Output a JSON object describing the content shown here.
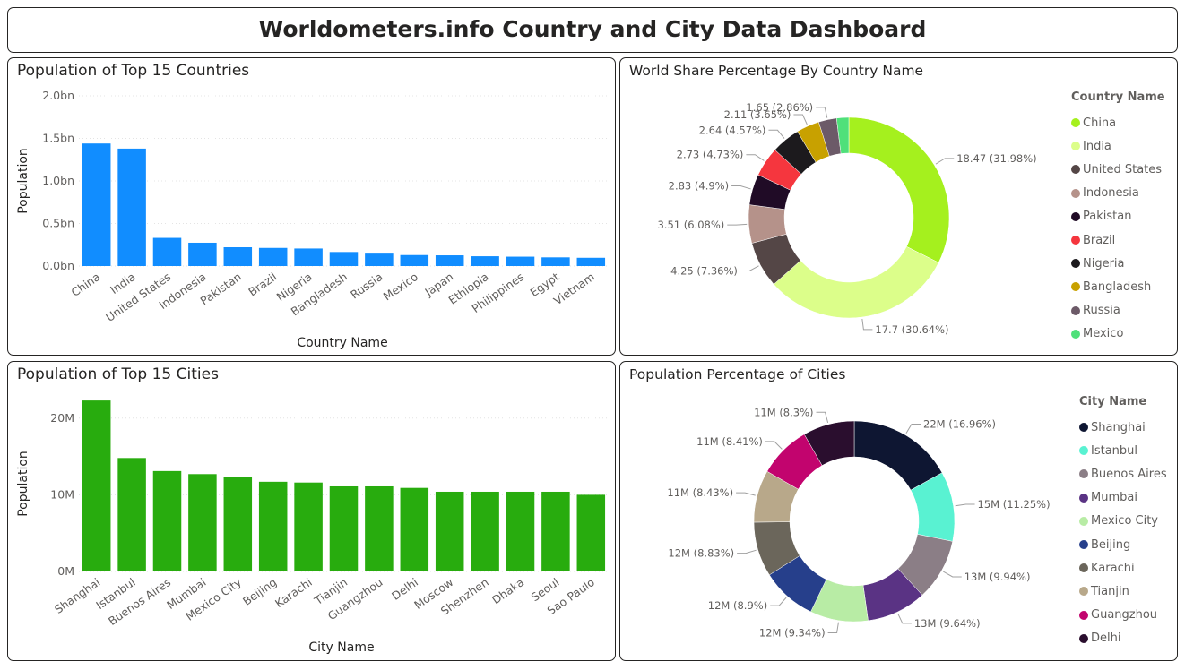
{
  "dashboard": {
    "title": "Worldometers.info Country and City Data Dashboard"
  },
  "countries_panel": {
    "title": "Population of Top 15 Countries"
  },
  "share_panel": {
    "title": "World Share Percentage By Country Name",
    "legend_title": "Country Name"
  },
  "cities_panel": {
    "title": "Population of Top 15 Cities"
  },
  "citypct_panel": {
    "title": "Population Percentage of Cities",
    "legend_title": "City Name"
  },
  "chart_data": [
    {
      "type": "bar",
      "title": "Population of Top 15 Countries",
      "xlabel": "Country Name",
      "ylabel": "Population",
      "ylim": [
        0,
        2000000000
      ],
      "yticks": [
        {
          "value": 0,
          "label": "0.0bn"
        },
        {
          "value": 500000000,
          "label": "0.5bn"
        },
        {
          "value": 1000000000,
          "label": "1.0bn"
        },
        {
          "value": 1500000000,
          "label": "1.5bn"
        },
        {
          "value": 2000000000,
          "label": "2.0bn"
        }
      ],
      "grid": true,
      "color": "#118DFF",
      "categories": [
        "China",
        "India",
        "United States",
        "Indonesia",
        "Pakistan",
        "Brazil",
        "Nigeria",
        "Bangladesh",
        "Russia",
        "Mexico",
        "Japan",
        "Ethiopia",
        "Philippines",
        "Egypt",
        "Vietnam"
      ],
      "values": [
        1440000000,
        1380000000,
        331000000,
        274000000,
        221000000,
        213000000,
        206000000,
        165000000,
        146000000,
        129000000,
        126000000,
        115000000,
        110000000,
        102000000,
        97000000
      ]
    },
    {
      "type": "pie",
      "title": "World Share Percentage By Country Name",
      "legend_title": "Country Name",
      "legend_position": "right",
      "slices": [
        {
          "name": "China",
          "value": 18.47,
          "label": "18.47 (31.98%)",
          "color": "#A5F01E"
        },
        {
          "name": "India",
          "value": 17.7,
          "label": "17.7 (30.64%)",
          "color": "#DCFE8A"
        },
        {
          "name": "United States",
          "value": 4.25,
          "label": "4.25 (7.36%)",
          "color": "#544646"
        },
        {
          "name": "Indonesia",
          "value": 3.51,
          "label": "3.51 (6.08%)",
          "color": "#B5928A"
        },
        {
          "name": "Pakistan",
          "value": 2.83,
          "label": "2.83 (4.9%)",
          "color": "#200B26"
        },
        {
          "name": "Brazil",
          "value": 2.73,
          "label": "2.73 (4.73%)",
          "color": "#F5363E"
        },
        {
          "name": "Nigeria",
          "value": 2.64,
          "label": "2.64 (4.57%)",
          "color": "#1C1A1D"
        },
        {
          "name": "Bangladesh",
          "value": 2.11,
          "label": "2.11 (3.65%)",
          "color": "#C8A100"
        },
        {
          "name": "Russia",
          "value": 1.65,
          "label": "1.65 (2.86%)",
          "color": "#6C5A68"
        },
        {
          "name": "Mexico",
          "value": 1.12,
          "label": "",
          "color": "#4FE07A"
        }
      ]
    },
    {
      "type": "bar",
      "title": "Population of Top 15 Cities",
      "xlabel": "City Name",
      "ylabel": "Population",
      "ylim": [
        0,
        25000000
      ],
      "yticks": [
        {
          "value": 0,
          "label": "0M"
        },
        {
          "value": 10000000,
          "label": "10M"
        },
        {
          "value": 20000000,
          "label": "20M"
        }
      ],
      "grid": true,
      "color": "#28AC0E",
      "categories": [
        "Shanghai",
        "Istanbul",
        "Buenos Aires",
        "Mumbai",
        "Mexico City",
        "Beijing",
        "Karachi",
        "Tianjin",
        "Guangzhou",
        "Delhi",
        "Moscow",
        "Shenzhen",
        "Dhaka",
        "Seoul",
        "Sao Paulo"
      ],
      "values": [
        22300000,
        14800000,
        13100000,
        12700000,
        12300000,
        11700000,
        11600000,
        11100000,
        11100000,
        10900000,
        10400000,
        10400000,
        10400000,
        10400000,
        10000000
      ]
    },
    {
      "type": "pie",
      "title": "Population Percentage of Cities",
      "legend_title": "City Name",
      "legend_position": "right",
      "slices": [
        {
          "name": "Shanghai",
          "value": 16.96,
          "label": "22M (16.96%)",
          "color": "#0E1632"
        },
        {
          "name": "Istanbul",
          "value": 11.25,
          "label": "15M (11.25%)",
          "color": "#59F2D2"
        },
        {
          "name": "Buenos Aires",
          "value": 9.94,
          "label": "13M (9.94%)",
          "color": "#8B7E86"
        },
        {
          "name": "Mumbai",
          "value": 9.64,
          "label": "13M (9.64%)",
          "color": "#5A3384"
        },
        {
          "name": "Mexico City",
          "value": 9.34,
          "label": "12M (9.34%)",
          "color": "#B8ECA5"
        },
        {
          "name": "Beijing",
          "value": 8.9,
          "label": "12M (8.9%)",
          "color": "#263F8B"
        },
        {
          "name": "Karachi",
          "value": 8.83,
          "label": "12M (8.83%)",
          "color": "#6B665B"
        },
        {
          "name": "Tianjin",
          "value": 8.43,
          "label": "11M (8.43%)",
          "color": "#B8A88A"
        },
        {
          "name": "Guangzhou",
          "value": 8.41,
          "label": "11M (8.41%)",
          "color": "#C2046E"
        },
        {
          "name": "Delhi",
          "value": 8.3,
          "label": "11M (8.3%)",
          "color": "#2A0E2E"
        }
      ]
    }
  ]
}
